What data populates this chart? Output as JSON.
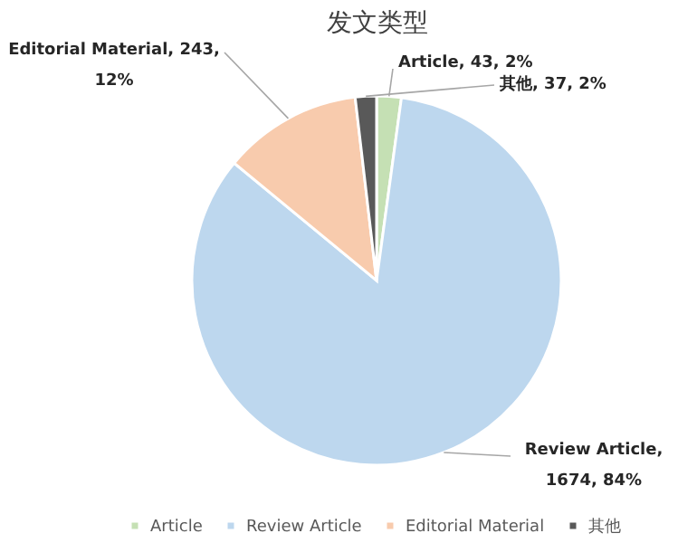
{
  "chart_data": {
    "type": "pie",
    "title": "发文类型",
    "categories": [
      "Article",
      "Review Article",
      "Editorial Material",
      "其他"
    ],
    "values": [
      43,
      1674,
      243,
      37
    ],
    "colors": [
      "#c5e0b4",
      "#bdd7ee",
      "#f8cbad",
      "#595959"
    ],
    "value_labels": [
      "Article, 43, 2%",
      "Review Article, 1674, 84%",
      "Editorial Material, 243, 12%",
      "其他, 37, 2%"
    ],
    "legend": "bottom"
  }
}
